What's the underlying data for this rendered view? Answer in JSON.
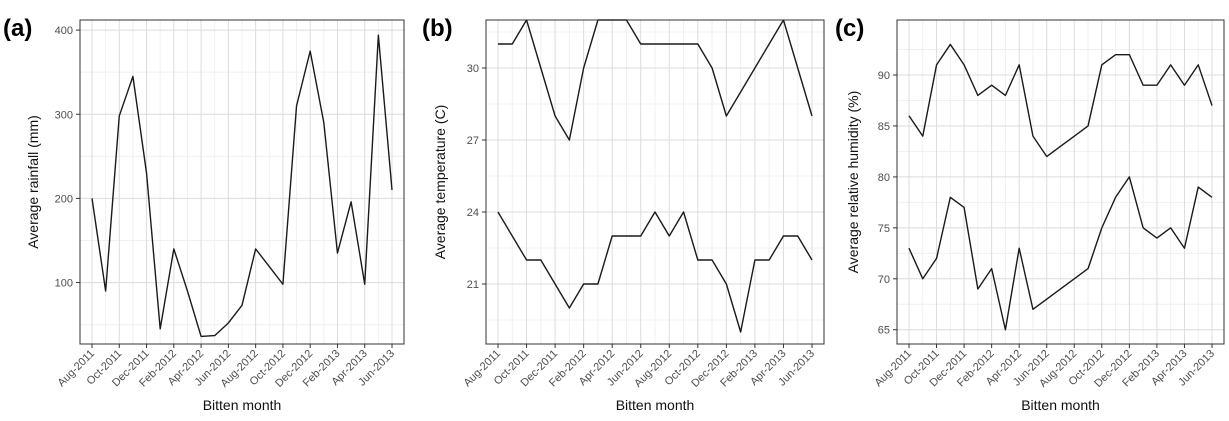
{
  "chart_data": [
    {
      "panel_label": "(a)",
      "type": "line",
      "title": "",
      "xlabel": "Bitten month",
      "ylabel": "Average rainfall (mm)",
      "x": [
        "Aug-2011",
        "Sep-2011",
        "Oct-2011",
        "Nov-2011",
        "Dec-2011",
        "Jan-2012",
        "Feb-2012",
        "Mar-2012",
        "Apr-2012",
        "May-2012",
        "Jun-2012",
        "Jul-2012",
        "Aug-2012",
        "Sep-2012",
        "Oct-2012",
        "Nov-2012",
        "Dec-2012",
        "Jan-2013",
        "Feb-2013",
        "Mar-2013",
        "Apr-2013",
        "May-2013",
        "Jun-2013"
      ],
      "x_tick_labels": [
        "Aug-2011",
        "Oct-2011",
        "Dec-2011",
        "Feb-2012",
        "Apr-2012",
        "Jun-2012",
        "Aug-2012",
        "Oct-2012",
        "Dec-2012",
        "Feb-2013",
        "Apr-2013",
        "Jun-2013"
      ],
      "ylim": [
        27,
        412
      ],
      "y_ticks": [
        100,
        200,
        300,
        400
      ],
      "grid": true,
      "series": [
        {
          "values": [
            200,
            90,
            298,
            345,
            230,
            45,
            140,
            90,
            36,
            37,
            52,
            73,
            140,
            119,
            98,
            310,
            375,
            290,
            135,
            196,
            98,
            394,
            210
          ]
        }
      ]
    },
    {
      "panel_label": "(b)",
      "type": "line",
      "title": "",
      "xlabel": "Bitten month",
      "ylabel": "Average temperature (C)",
      "x": [
        "Aug-2011",
        "Sep-2011",
        "Oct-2011",
        "Nov-2011",
        "Dec-2011",
        "Jan-2012",
        "Feb-2012",
        "Mar-2012",
        "Apr-2012",
        "May-2012",
        "Jun-2012",
        "Jul-2012",
        "Aug-2012",
        "Sep-2012",
        "Oct-2012",
        "Nov-2012",
        "Dec-2012",
        "Jan-2013",
        "Feb-2013",
        "Mar-2013",
        "Apr-2013",
        "May-2013",
        "Jun-2013"
      ],
      "x_tick_labels": [
        "Aug-2011",
        "Oct-2011",
        "Dec-2011",
        "Feb-2012",
        "Apr-2012",
        "Jun-2012",
        "Aug-2012",
        "Oct-2012",
        "Dec-2012",
        "Feb-2013",
        "Apr-2013",
        "Jun-2013"
      ],
      "ylim": [
        18.5,
        32.0
      ],
      "y_ticks": [
        21,
        24,
        27,
        30
      ],
      "grid": true,
      "series": [
        {
          "values": [
            31,
            31,
            32,
            30,
            28,
            27,
            30,
            32,
            32,
            32,
            31,
            31,
            31,
            31,
            31,
            30,
            28,
            29,
            30,
            31,
            32,
            30,
            28
          ]
        },
        {
          "values": [
            24,
            23,
            22,
            22,
            21,
            20,
            21,
            21,
            23,
            23,
            23,
            24,
            23,
            24,
            22,
            22,
            21,
            19,
            22,
            22,
            23,
            23,
            22
          ]
        }
      ]
    },
    {
      "panel_label": "(c)",
      "type": "line",
      "title": "",
      "xlabel": "Bitten month",
      "ylabel": "Average relative humidity (%)",
      "x": [
        "Aug-2011",
        "Sep-2011",
        "Oct-2011",
        "Nov-2011",
        "Dec-2011",
        "Jan-2012",
        "Feb-2012",
        "Mar-2012",
        "Apr-2012",
        "May-2012",
        "Jun-2012",
        "Jul-2012",
        "Aug-2012",
        "Sep-2012",
        "Oct-2012",
        "Nov-2012",
        "Dec-2012",
        "Jan-2013",
        "Feb-2013",
        "Mar-2013",
        "Apr-2013",
        "May-2013",
        "Jun-2013"
      ],
      "x_tick_labels": [
        "Aug-2011",
        "Oct-2011",
        "Dec-2011",
        "Feb-2012",
        "Apr-2012",
        "Jun-2012",
        "Aug-2012",
        "Oct-2012",
        "Dec-2012",
        "Feb-2013",
        "Apr-2013",
        "Jun-2013"
      ],
      "ylim": [
        63.6,
        95.4
      ],
      "y_ticks": [
        65,
        70,
        75,
        80,
        85,
        90
      ],
      "grid": true,
      "series": [
        {
          "values": [
            86,
            84,
            91,
            93,
            91,
            88,
            89,
            88,
            91,
            84,
            82,
            83,
            84,
            85,
            91,
            92,
            92,
            89,
            89,
            91,
            89,
            91,
            87
          ]
        },
        {
          "values": [
            73,
            70,
            72,
            78,
            77,
            69,
            71,
            65,
            73,
            67,
            68,
            69,
            70,
            71,
            75,
            78,
            80,
            75,
            74,
            75,
            73,
            79,
            78
          ]
        }
      ]
    }
  ]
}
